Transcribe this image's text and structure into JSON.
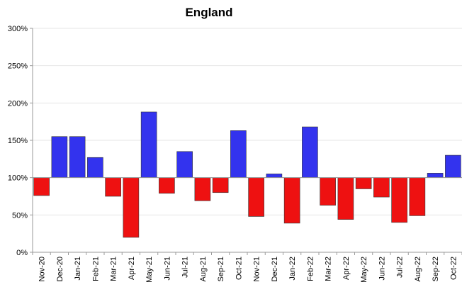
{
  "chart_data": {
    "type": "bar",
    "title": "England",
    "xlabel": "",
    "ylabel": "",
    "baseline": 100,
    "ylim": [
      0,
      300
    ],
    "yticks": [
      0,
      50,
      100,
      150,
      200,
      250,
      300
    ],
    "ytick_labels": [
      "0%",
      "50%",
      "100%",
      "150%",
      "200%",
      "250%",
      "300%"
    ],
    "grid": true,
    "legend": "none",
    "colors": {
      "above": "#3333ee",
      "below": "#ee1111"
    },
    "categories": [
      "Nov-20",
      "Dec-20",
      "Jan-21",
      "Feb-21",
      "Mar-21",
      "Apr-21",
      "May-21",
      "Jun-21",
      "Jul-21",
      "Aug-21",
      "Sep-21",
      "Oct-21",
      "Nov-21",
      "Dec-21",
      "Jan-22",
      "Feb-22",
      "Mar-22",
      "Apr-22",
      "May-22",
      "Jun-22",
      "Jul-22",
      "Aug-22",
      "Sep-22",
      "Oct-22"
    ],
    "values": [
      76,
      155,
      155,
      127,
      75,
      20,
      188,
      79,
      135,
      69,
      80,
      163,
      48,
      105,
      39,
      168,
      63,
      44,
      85,
      74,
      40,
      49,
      106,
      130
    ]
  }
}
